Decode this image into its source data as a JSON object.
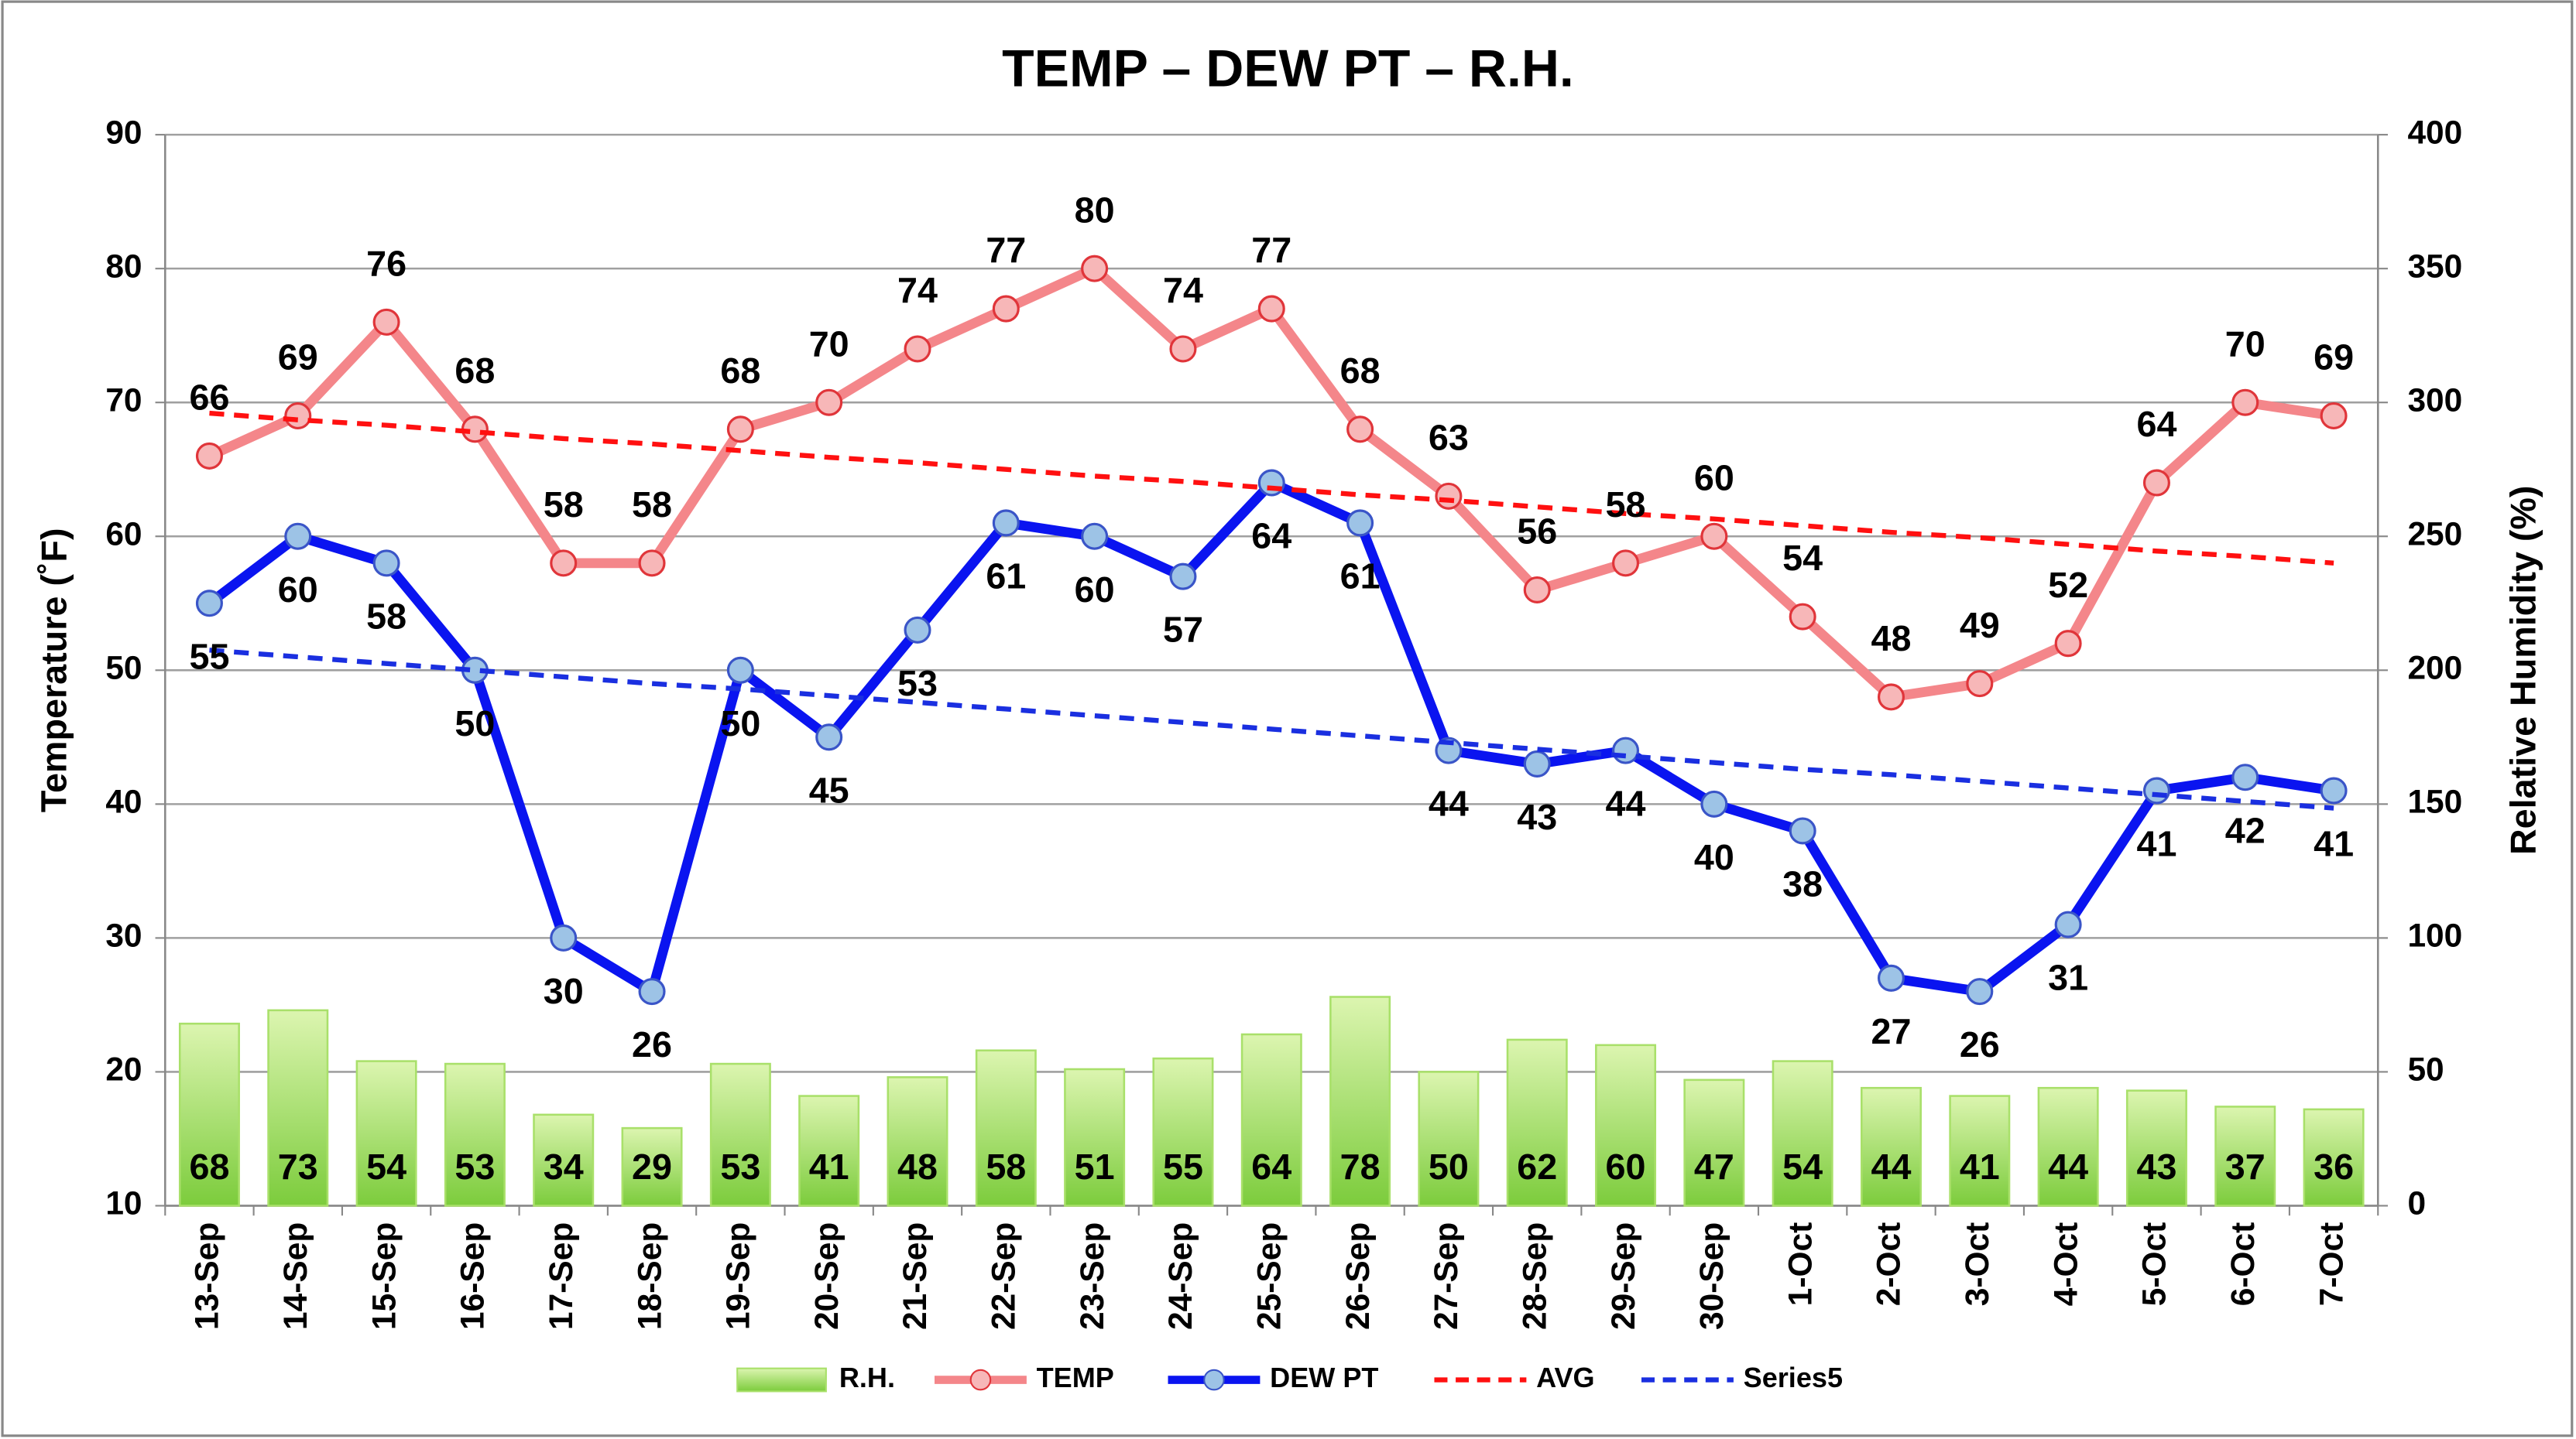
{
  "chart_data": {
    "type": "bar_line",
    "title": "TEMP  – DEW PT – R.H.",
    "ylabel": "Temperature (˚F)",
    "y2label": "Relative Humidity (%)",
    "categories": [
      "13-Sep",
      "14-Sep",
      "15-Sep",
      "16-Sep",
      "17-Sep",
      "18-Sep",
      "19-Sep",
      "20-Sep",
      "21-Sep",
      "22-Sep",
      "23-Sep",
      "24-Sep",
      "25-Sep",
      "26-Sep",
      "27-Sep",
      "28-Sep",
      "29-Sep",
      "30-Sep",
      "1-Oct",
      "2-Oct",
      "3-Oct",
      "4-Oct",
      "5-Oct",
      "6-Oct",
      "7-Oct"
    ],
    "ylim": [
      10,
      90
    ],
    "yticks": [
      10,
      20,
      30,
      40,
      50,
      60,
      70,
      80,
      90
    ],
    "y2lim": [
      0,
      400
    ],
    "y2ticks": [
      0,
      50,
      100,
      150,
      200,
      250,
      300,
      350,
      400
    ],
    "grid": true,
    "legend": "bottom",
    "series": [
      {
        "name": "R.H.",
        "type": "bar",
        "axis": "y2",
        "color": "#a9e06a",
        "label_position": "base",
        "values": [
          68,
          73,
          54,
          53,
          34,
          29,
          53,
          41,
          48,
          58,
          51,
          55,
          64,
          78,
          50,
          62,
          60,
          47,
          54,
          44,
          41,
          44,
          43,
          37,
          36
        ]
      },
      {
        "name": "TEMP",
        "type": "line",
        "color": "#f4868a",
        "marker_color": "#f7b7b8",
        "marker_edge": "#e0353a",
        "label_position": "above",
        "values": [
          66,
          69,
          76,
          68,
          58,
          58,
          68,
          70,
          74,
          77,
          80,
          74,
          77,
          68,
          63,
          56,
          58,
          60,
          54,
          48,
          49,
          52,
          64,
          70,
          69
        ]
      },
      {
        "name": "DEW PT",
        "type": "line",
        "color": "#0a14f0",
        "marker_color": "#9dc3e6",
        "marker_edge": "#3a55c8",
        "label_position": "below",
        "values": [
          55,
          60,
          58,
          50,
          30,
          26,
          50,
          45,
          53,
          61,
          60,
          57,
          64,
          61,
          44,
          43,
          44,
          40,
          38,
          27,
          26,
          31,
          41,
          42,
          41
        ]
      },
      {
        "name": "AVG",
        "type": "line",
        "dashed": true,
        "color": "#ff1010",
        "values": [
          69.2,
          68.7,
          68.3,
          67.8,
          67.3,
          66.9,
          66.4,
          65.9,
          65.5,
          65.0,
          64.5,
          64.1,
          63.6,
          63.1,
          62.7,
          62.2,
          61.7,
          61.3,
          60.8,
          60.3,
          59.9,
          59.4,
          58.9,
          58.5,
          58.0
        ]
      },
      {
        "name": "Series5",
        "type": "line",
        "dashed": true,
        "color": "#1a2fe0",
        "values": [
          51.5,
          51.0,
          50.5,
          50.0,
          49.5,
          49.0,
          48.6,
          48.1,
          47.6,
          47.1,
          46.6,
          46.1,
          45.6,
          45.1,
          44.6,
          44.1,
          43.6,
          43.1,
          42.6,
          42.2,
          41.7,
          41.2,
          40.7,
          40.2,
          39.7
        ]
      }
    ]
  }
}
